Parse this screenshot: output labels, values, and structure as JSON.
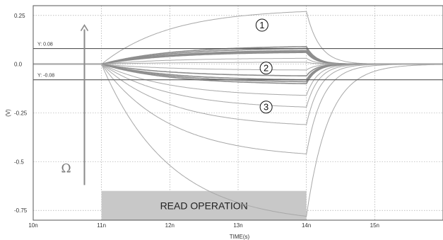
{
  "chart_data": {
    "type": "line",
    "title": "",
    "xlabel": "TIME(s)",
    "ylabel": "(V)",
    "xlim": [
      10,
      16
    ],
    "ylim": [
      -0.8,
      0.3
    ],
    "grid": true,
    "x_ticks": [
      {
        "value": 10,
        "label": "10n"
      },
      {
        "value": 11,
        "label": "11n"
      },
      {
        "value": 12,
        "label": "12n"
      },
      {
        "value": 13,
        "label": "13n"
      },
      {
        "value": 14,
        "label": "14n"
      },
      {
        "value": 15,
        "label": "15n"
      }
    ],
    "y_ticks": [
      {
        "value": 0.25,
        "label": "0.25"
      },
      {
        "value": 0.0,
        "label": "0.0"
      },
      {
        "value": -0.25,
        "label": "-0.25"
      },
      {
        "value": -0.5,
        "label": "-0.5"
      },
      {
        "value": -0.75,
        "label": "-0.75"
      }
    ],
    "markers": [
      {
        "y": 0.08,
        "label": "Y: 0.08"
      },
      {
        "y": -0.08,
        "label": "Y: -0.08"
      }
    ],
    "region": {
      "x_start": 11,
      "x_end": 14,
      "y_top": -0.65,
      "y_bottom": -0.8,
      "label": "READ OPERATION"
    },
    "arrow_label": "Ω",
    "arrow": {
      "x": 10.75,
      "y_from": -0.62,
      "y_to": 0.2
    },
    "callouts": [
      {
        "text": "1",
        "x": 13.35,
        "y": 0.2
      },
      {
        "text": "2",
        "x": 13.41,
        "y": -0.02
      },
      {
        "text": "3",
        "x": 13.41,
        "y": -0.22
      }
    ],
    "curve_shape": {
      "read_start": 11,
      "read_end": 14,
      "rise_tau": 1.0,
      "decay_tau": 0.12
    },
    "series": [
      {
        "end_value": 0.27
      },
      {
        "end_value": 0.09
      },
      {
        "end_value": 0.08
      },
      {
        "end_value": 0.07
      },
      {
        "end_value": 0.065
      },
      {
        "end_value": 0.06
      },
      {
        "end_value": 0.03
      },
      {
        "end_value": 0.01
      },
      {
        "end_value": -0.03
      },
      {
        "end_value": -0.06
      },
      {
        "end_value": -0.08
      },
      {
        "end_value": -0.09
      },
      {
        "end_value": -0.1
      },
      {
        "end_value": -0.16
      },
      {
        "end_value": -0.22
      },
      {
        "end_value": -0.31
      },
      {
        "end_value": -0.46
      },
      {
        "end_value": -0.78
      }
    ]
  }
}
